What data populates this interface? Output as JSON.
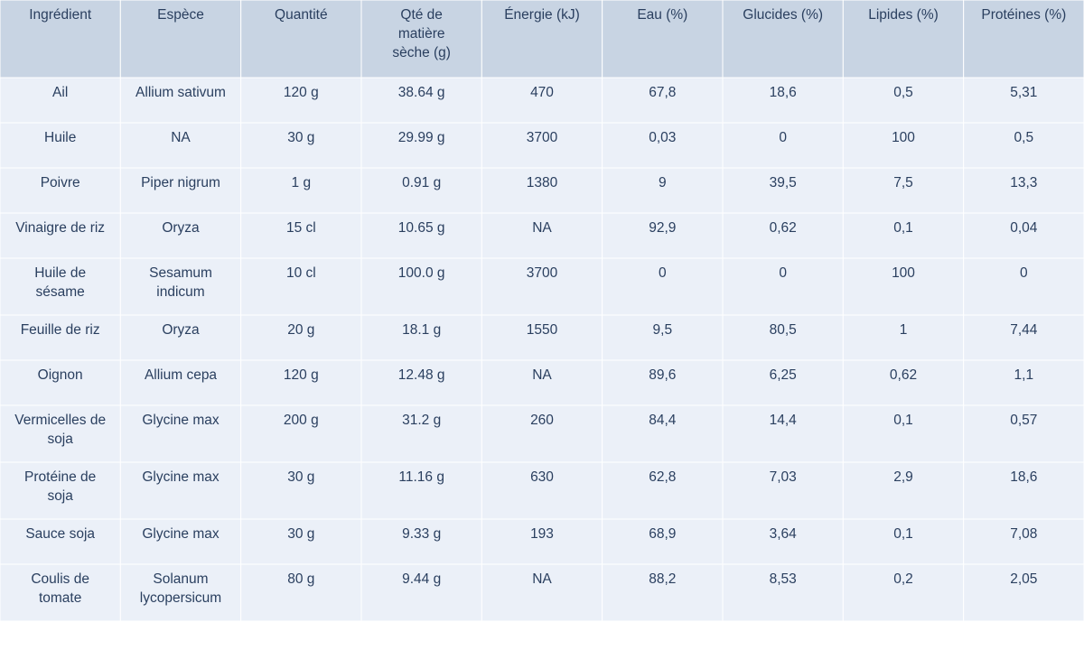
{
  "colors": {
    "header_fill": "#c8d4e3",
    "cell_fill": "#ebf0f8",
    "border": "#ffffff",
    "header_text": "#2a3f5f",
    "cell_text": "#2a3f5f"
  },
  "chart_data": {
    "type": "table",
    "columns": [
      [
        "Ingrédient"
      ],
      [
        "Espèce"
      ],
      [
        "Quantité"
      ],
      [
        "Qté de",
        "matière",
        "sèche (g)"
      ],
      [
        "Énergie (kJ)"
      ],
      [
        "Eau (%)"
      ],
      [
        "Glucides (%)"
      ],
      [
        "Lipides (%)"
      ],
      [
        "Protéines (%)"
      ]
    ],
    "rows": [
      [
        [
          "Ail"
        ],
        [
          "Allium sativum"
        ],
        [
          "120 g"
        ],
        [
          "38.64 g"
        ],
        [
          "470"
        ],
        [
          "67,8"
        ],
        [
          "18,6"
        ],
        [
          "0,5"
        ],
        [
          "5,31"
        ]
      ],
      [
        [
          "Huile"
        ],
        [
          "NA"
        ],
        [
          "30 g"
        ],
        [
          "29.99 g"
        ],
        [
          "3700"
        ],
        [
          "0,03"
        ],
        [
          "0"
        ],
        [
          "100"
        ],
        [
          "0,5"
        ]
      ],
      [
        [
          "Poivre"
        ],
        [
          "Piper nigrum"
        ],
        [
          "1 g"
        ],
        [
          "0.91 g"
        ],
        [
          "1380"
        ],
        [
          "9"
        ],
        [
          "39,5"
        ],
        [
          "7,5"
        ],
        [
          "13,3"
        ]
      ],
      [
        [
          "Vinaigre de riz"
        ],
        [
          "Oryza"
        ],
        [
          "15 cl"
        ],
        [
          "10.65 g"
        ],
        [
          "NA"
        ],
        [
          "92,9"
        ],
        [
          "0,62"
        ],
        [
          "0,1"
        ],
        [
          "0,04"
        ]
      ],
      [
        [
          "Huile de",
          "sésame"
        ],
        [
          "Sesamum",
          "indicum"
        ],
        [
          "10 cl"
        ],
        [
          "100.0 g"
        ],
        [
          "3700"
        ],
        [
          "0"
        ],
        [
          "0"
        ],
        [
          "100"
        ],
        [
          "0"
        ]
      ],
      [
        [
          "Feuille de riz"
        ],
        [
          "Oryza"
        ],
        [
          "20 g"
        ],
        [
          "18.1 g"
        ],
        [
          "1550"
        ],
        [
          "9,5"
        ],
        [
          "80,5"
        ],
        [
          "1"
        ],
        [
          "7,44"
        ]
      ],
      [
        [
          "Oignon"
        ],
        [
          "Allium cepa"
        ],
        [
          "120 g"
        ],
        [
          "12.48 g"
        ],
        [
          "NA"
        ],
        [
          "89,6"
        ],
        [
          "6,25"
        ],
        [
          "0,62"
        ],
        [
          "1,1"
        ]
      ],
      [
        [
          "Vermicelles de",
          "soja"
        ],
        [
          "Glycine max"
        ],
        [
          "200 g"
        ],
        [
          "31.2 g"
        ],
        [
          "260"
        ],
        [
          "84,4"
        ],
        [
          "14,4"
        ],
        [
          "0,1"
        ],
        [
          "0,57"
        ]
      ],
      [
        [
          "Protéine de",
          "soja"
        ],
        [
          "Glycine max"
        ],
        [
          "30 g"
        ],
        [
          "11.16 g"
        ],
        [
          "630"
        ],
        [
          "62,8"
        ],
        [
          "7,03"
        ],
        [
          "2,9"
        ],
        [
          "18,6"
        ]
      ],
      [
        [
          "Sauce soja"
        ],
        [
          "Glycine max"
        ],
        [
          "30 g"
        ],
        [
          "9.33 g"
        ],
        [
          "193"
        ],
        [
          "68,9"
        ],
        [
          "3,64"
        ],
        [
          "0,1"
        ],
        [
          "7,08"
        ]
      ],
      [
        [
          "Coulis de",
          "tomate"
        ],
        [
          "Solanum",
          "lycopersicum"
        ],
        [
          "80 g"
        ],
        [
          "9.44 g"
        ],
        [
          "NA"
        ],
        [
          "88,2"
        ],
        [
          "8,53"
        ],
        [
          "0,2"
        ],
        [
          "2,05"
        ]
      ]
    ]
  }
}
